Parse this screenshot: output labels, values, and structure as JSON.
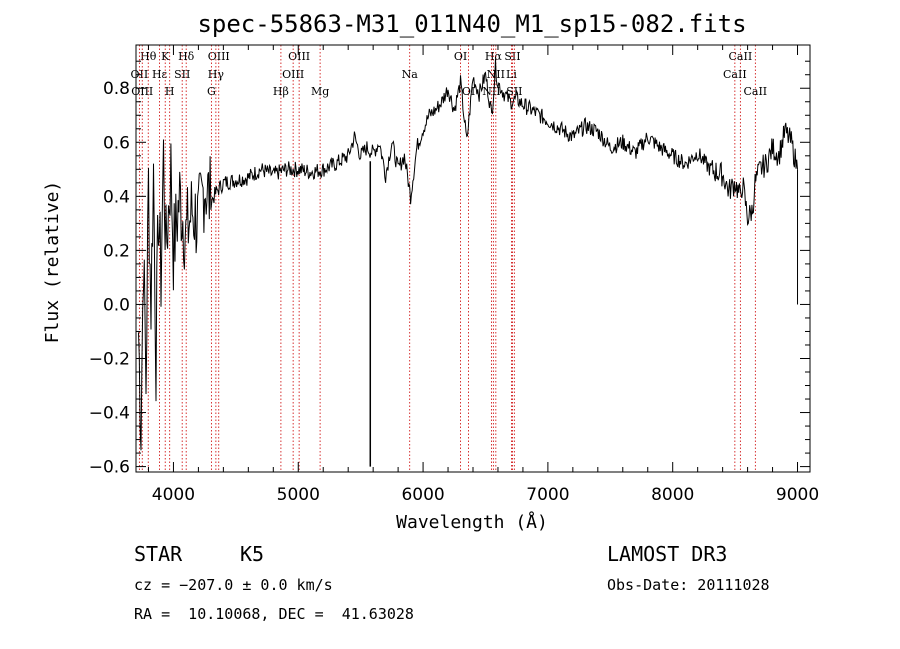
{
  "chart_data": {
    "type": "line",
    "title": "spec-55863-M31_011N40_M1_sp15-082.fits",
    "xlabel": "Wavelength (Å)",
    "ylabel": "Flux (relative)",
    "xlim": [
      3700,
      9100
    ],
    "ylim": [
      -0.62,
      0.96
    ],
    "xticks": [
      4000,
      5000,
      6000,
      7000,
      8000,
      9000
    ],
    "xtick_labels": [
      "4000",
      "5000",
      "6000",
      "7000",
      "8000",
      "9000"
    ],
    "yticks": [
      -0.6,
      -0.4,
      -0.2,
      0.0,
      0.2,
      0.4,
      0.6,
      0.8
    ],
    "ytick_labels": [
      "−0.6",
      "−0.4",
      "−0.2",
      "0.0",
      "0.2",
      "0.4",
      "0.6",
      "0.8"
    ],
    "line_color": "#000000",
    "marker_color": "#cc0000",
    "series": [
      {
        "name": "spectrum",
        "x": [
          3720,
          3740,
          3760,
          3780,
          3800,
          3820,
          3840,
          3860,
          3880,
          3900,
          3920,
          3940,
          3960,
          3980,
          4000,
          4050,
          4100,
          4150,
          4200,
          4250,
          4300,
          4350,
          4400,
          4500,
          4600,
          4700,
          4800,
          4900,
          5000,
          5100,
          5200,
          5300,
          5400,
          5450,
          5500,
          5550,
          5600,
          5650,
          5700,
          5750,
          5800,
          5850,
          5900,
          5950,
          6000,
          6050,
          6100,
          6150,
          6200,
          6250,
          6300,
          6350,
          6400,
          6450,
          6500,
          6550,
          6580,
          6600,
          6650,
          6700,
          6750,
          6800,
          6900,
          7000,
          7100,
          7200,
          7300,
          7400,
          7500,
          7600,
          7700,
          7800,
          7900,
          8000,
          8100,
          8200,
          8300,
          8400,
          8450,
          8500,
          8540,
          8560,
          8600,
          8640,
          8660,
          8700,
          8750,
          8800,
          8850,
          8900,
          8950,
          9000
        ],
        "y": [
          -0.1,
          -0.45,
          0.2,
          -0.3,
          0.45,
          0.0,
          0.5,
          -0.2,
          0.35,
          0.1,
          0.55,
          0.2,
          0.35,
          0.5,
          0.2,
          0.4,
          0.25,
          0.35,
          0.3,
          0.45,
          0.38,
          0.42,
          0.45,
          0.46,
          0.47,
          0.5,
          0.48,
          0.5,
          0.5,
          0.49,
          0.5,
          0.52,
          0.55,
          0.62,
          0.55,
          0.58,
          0.56,
          0.6,
          0.48,
          0.6,
          0.5,
          0.55,
          0.4,
          0.58,
          0.65,
          0.7,
          0.72,
          0.75,
          0.8,
          0.72,
          0.82,
          0.6,
          0.84,
          0.78,
          0.85,
          0.7,
          0.88,
          0.82,
          0.78,
          0.75,
          0.76,
          0.74,
          0.71,
          0.68,
          0.65,
          0.62,
          0.66,
          0.64,
          0.58,
          0.6,
          0.56,
          0.62,
          0.58,
          0.55,
          0.52,
          0.56,
          0.5,
          0.48,
          0.42,
          0.45,
          0.4,
          0.45,
          0.32,
          0.35,
          0.45,
          0.5,
          0.52,
          0.58,
          0.55,
          0.64,
          0.6,
          0.5
        ]
      }
    ],
    "spike": {
      "x": 5577,
      "y_top": 0.53,
      "y_bottom": -0.6
    },
    "lines": [
      {
        "label": "Hθ",
        "x": 3798,
        "row": 0
      },
      {
        "label": "K",
        "x": 3934,
        "row": 0
      },
      {
        "label": "Hδ",
        "x": 4102,
        "row": 0
      },
      {
        "label": "OIII",
        "x": 4363,
        "row": 0
      },
      {
        "label": "OIII",
        "x": 5007,
        "row": 0
      },
      {
        "label": "OI",
        "x": 6300,
        "row": 0
      },
      {
        "label": "Hα",
        "x": 6563,
        "row": 0
      },
      {
        "label": "SII",
        "x": 6716,
        "row": 0
      },
      {
        "label": "CaII",
        "x": 8542,
        "row": 0
      },
      {
        "label": "OII",
        "x": 3727,
        "row": 1
      },
      {
        "label": "Hε",
        "x": 3889,
        "row": 1
      },
      {
        "label": "SII",
        "x": 4070,
        "row": 1
      },
      {
        "label": "Hγ",
        "x": 4340,
        "row": 1
      },
      {
        "label": "OIII",
        "x": 4959,
        "row": 1
      },
      {
        "label": "Na",
        "x": 5893,
        "row": 1
      },
      {
        "label": "NII",
        "x": 6583,
        "row": 1
      },
      {
        "label": "Li",
        "x": 6708,
        "row": 1
      },
      {
        "label": "CaII",
        "x": 8498,
        "row": 1
      },
      {
        "label": "OIII",
        "x": 3750,
        "row": 2
      },
      {
        "label": "H",
        "x": 3970,
        "row": 2
      },
      {
        "label": "G",
        "x": 4304,
        "row": 2
      },
      {
        "label": "Hβ",
        "x": 4861,
        "row": 2
      },
      {
        "label": "Mg",
        "x": 5175,
        "row": 2
      },
      {
        "label": "OI",
        "x": 6364,
        "row": 2
      },
      {
        "label": "NII",
        "x": 6548,
        "row": 2
      },
      {
        "label": "SII",
        "x": 6731,
        "row": 2
      },
      {
        "label": "CaII",
        "x": 8662,
        "row": 2
      }
    ]
  },
  "footer": {
    "object_type": "STAR",
    "subclass": "K5",
    "survey": "LAMOST DR3",
    "cz": "cz = −207.0 ± 0.0 km/s",
    "obs_date": "Obs-Date: 20111028",
    "coords": "RA =  10.10068, DEC =  41.63028"
  }
}
